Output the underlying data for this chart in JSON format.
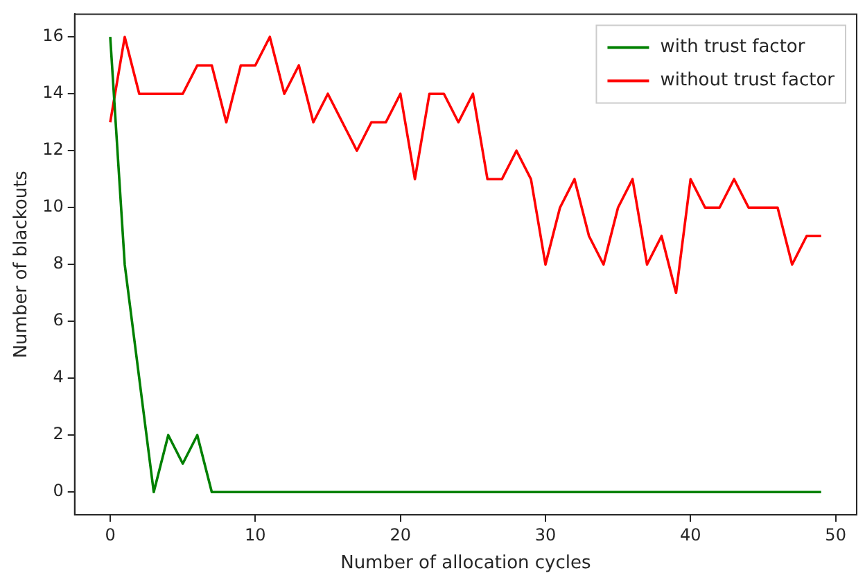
{
  "chart_data": {
    "type": "line",
    "xlabel": "Number of allocation cycles",
    "ylabel": "Number of blackouts",
    "x": [
      0,
      1,
      2,
      3,
      4,
      5,
      6,
      7,
      8,
      9,
      10,
      11,
      12,
      13,
      14,
      15,
      16,
      17,
      18,
      19,
      20,
      21,
      22,
      23,
      24,
      25,
      26,
      27,
      28,
      29,
      30,
      31,
      32,
      33,
      34,
      35,
      36,
      37,
      38,
      39,
      40,
      41,
      42,
      43,
      44,
      45,
      46,
      47,
      48,
      49
    ],
    "series": [
      {
        "name": "with trust factor",
        "color": "#008000",
        "values": [
          16,
          8,
          4,
          0,
          2,
          1,
          2,
          0,
          0,
          0,
          0,
          0,
          0,
          0,
          0,
          0,
          0,
          0,
          0,
          0,
          0,
          0,
          0,
          0,
          0,
          0,
          0,
          0,
          0,
          0,
          0,
          0,
          0,
          0,
          0,
          0,
          0,
          0,
          0,
          0,
          0,
          0,
          0,
          0,
          0,
          0,
          0,
          0,
          0,
          0
        ]
      },
      {
        "name": "without trust factor",
        "color": "#ff0000",
        "values": [
          13,
          16,
          14,
          14,
          14,
          14,
          15,
          15,
          13,
          15,
          15,
          16,
          14,
          15,
          13,
          14,
          13,
          12,
          13,
          13,
          14,
          11,
          14,
          14,
          13,
          14,
          11,
          11,
          12,
          11,
          8,
          10,
          11,
          9,
          8,
          10,
          11,
          8,
          9,
          7,
          11,
          10,
          10,
          11,
          10,
          10,
          10,
          8,
          9,
          9
        ]
      }
    ],
    "xlim": [
      -2.45,
      51.45
    ],
    "xticks": [
      0,
      10,
      20,
      30,
      40,
      50
    ],
    "ylim": [
      -0.8,
      16.8
    ],
    "yticks": [
      0,
      2,
      4,
      6,
      8,
      10,
      12,
      14,
      16
    ],
    "grid": false,
    "legend": "top right",
    "marker": "none",
    "line_style": "solid"
  }
}
